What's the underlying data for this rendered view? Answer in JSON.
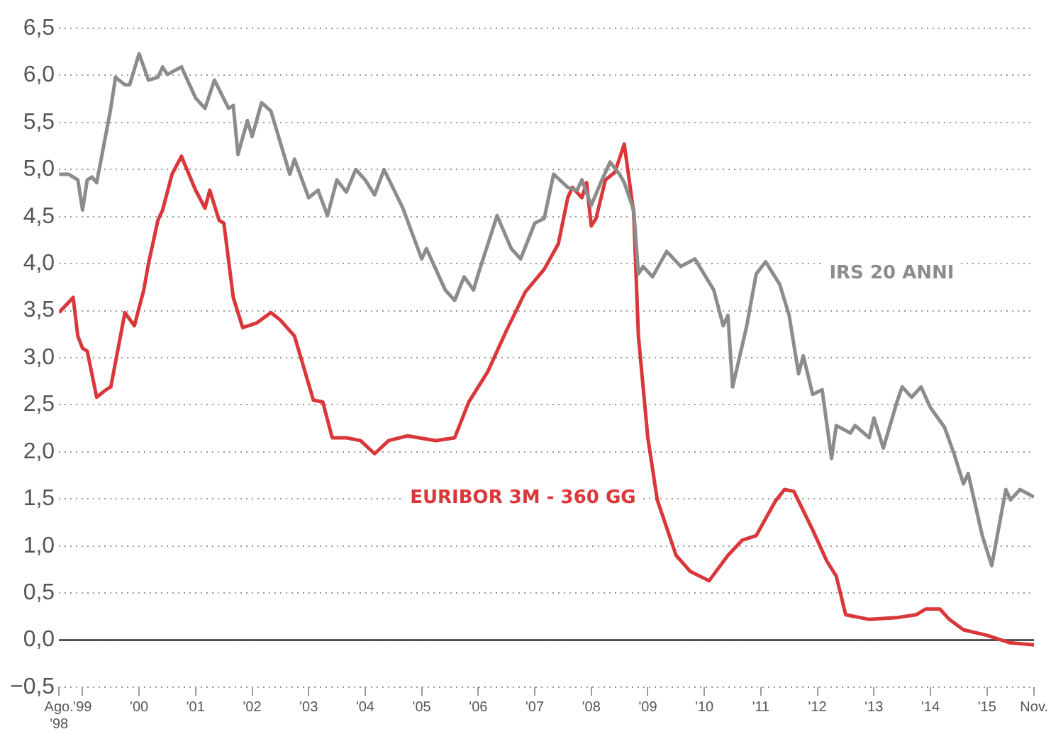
{
  "chart_data": {
    "type": "line",
    "xlim": [
      "1998-08",
      "2015-11"
    ],
    "xticks": [
      {
        "value": "1998-08",
        "label": "Ago. '98"
      },
      {
        "value": "1999-01",
        "label": "'99"
      },
      {
        "value": "2000-01",
        "label": "'00"
      },
      {
        "value": "2001-01",
        "label": "'01"
      },
      {
        "value": "2002-01",
        "label": "'02"
      },
      {
        "value": "2003-01",
        "label": "'03"
      },
      {
        "value": "2004-01",
        "label": "'04"
      },
      {
        "value": "2005-01",
        "label": "'05"
      },
      {
        "value": "2006-01",
        "label": "'06"
      },
      {
        "value": "2007-01",
        "label": "'07"
      },
      {
        "value": "2008-01",
        "label": "'08"
      },
      {
        "value": "2009-01",
        "label": "'09"
      },
      {
        "value": "2010-01",
        "label": "'10"
      },
      {
        "value": "2011-01",
        "label": "'11"
      },
      {
        "value": "2012-01",
        "label": "'12"
      },
      {
        "value": "2013-01",
        "label": "'13"
      },
      {
        "value": "2014-01",
        "label": "'14"
      },
      {
        "value": "2015-01",
        "label": "'15"
      },
      {
        "value": "2015-11",
        "label": "Nov."
      }
    ],
    "ylim": [
      -0.5,
      6.5
    ],
    "yticks": [
      {
        "value": -0.5,
        "label": "−0,5"
      },
      {
        "value": 0,
        "label": "0,0"
      },
      {
        "value": 0.5,
        "label": "0,5"
      },
      {
        "value": 1,
        "label": "1,0"
      },
      {
        "value": 1.5,
        "label": "1,5"
      },
      {
        "value": 2,
        "label": "2,0"
      },
      {
        "value": 2.5,
        "label": "2,5"
      },
      {
        "value": 3,
        "label": "3,0"
      },
      {
        "value": 3.5,
        "label": "3,5"
      },
      {
        "value": 4,
        "label": "4,0"
      },
      {
        "value": 4.5,
        "label": "4,5"
      },
      {
        "value": 5,
        "label": "5,0"
      },
      {
        "value": 5.5,
        "label": "5,5"
      },
      {
        "value": 6,
        "label": "6,0"
      },
      {
        "value": 6.5,
        "label": "6,5"
      }
    ],
    "grid": "y",
    "legend": false,
    "ref_lines": [
      {
        "axis": "y",
        "value": 0,
        "color": "#333333"
      }
    ],
    "series": [
      {
        "name": "IRS 20 ANNI",
        "color": "#8c8c8c",
        "x": [
          "1998-08",
          "1998-10",
          "1998-12",
          "1999-01",
          "1999-02",
          "1999-03",
          "1999-04",
          "1999-07",
          "1999-08",
          "1999-10",
          "1999-11",
          "2000-01",
          "2000-03",
          "2000-05",
          "2000-06",
          "2000-07",
          "2000-10",
          "2001-01",
          "2001-03",
          "2001-05",
          "2001-08",
          "2001-09",
          "2001-10",
          "2001-12",
          "2002-01",
          "2002-03",
          "2002-05",
          "2002-09",
          "2002-10",
          "2003-01",
          "2003-03",
          "2003-05",
          "2003-07",
          "2003-09",
          "2003-11",
          "2004-01",
          "2004-03",
          "2004-05",
          "2004-09",
          "2005-01",
          "2005-02",
          "2005-06",
          "2005-08",
          "2005-10",
          "2005-12",
          "2006-01",
          "2006-05",
          "2006-08",
          "2006-10",
          "2007-01",
          "2007-03",
          "2007-05",
          "2007-08",
          "2007-10",
          "2007-11",
          "2008-01",
          "2008-03",
          "2008-05",
          "2008-07",
          "2008-08",
          "2008-10",
          "2008-11",
          "2008-12",
          "2009-02",
          "2009-05",
          "2009-08",
          "2009-11",
          "2010-03",
          "2010-05",
          "2010-06",
          "2010-07",
          "2010-10",
          "2010-12",
          "2011-02",
          "2011-05",
          "2011-07",
          "2011-09",
          "2011-10",
          "2011-12",
          "2012-02",
          "2012-04",
          "2012-05",
          "2012-08",
          "2012-09",
          "2012-12",
          "2013-01",
          "2013-03",
          "2013-06",
          "2013-07",
          "2013-09",
          "2013-11",
          "2014-01",
          "2014-04",
          "2014-06",
          "2014-08",
          "2014-09",
          "2014-12",
          "2015-02",
          "2015-05",
          "2015-06",
          "2015-08",
          "2015-11"
        ],
        "values": [
          4.95,
          4.95,
          4.89,
          4.57,
          4.89,
          4.92,
          4.86,
          5.65,
          5.98,
          5.9,
          5.9,
          6.23,
          5.95,
          5.98,
          6.09,
          6.01,
          6.09,
          5.76,
          5.65,
          5.95,
          5.65,
          5.68,
          5.16,
          5.52,
          5.35,
          5.71,
          5.62,
          4.95,
          5.11,
          4.7,
          4.78,
          4.51,
          4.89,
          4.76,
          5.0,
          4.89,
          4.73,
          5.0,
          4.59,
          4.05,
          4.16,
          3.72,
          3.61,
          3.86,
          3.72,
          3.89,
          4.51,
          4.16,
          4.05,
          4.43,
          4.48,
          4.95,
          4.81,
          4.78,
          4.89,
          4.62,
          4.86,
          5.08,
          4.95,
          4.86,
          4.57,
          3.89,
          3.97,
          3.86,
          4.13,
          3.97,
          4.05,
          3.72,
          3.34,
          3.45,
          2.69,
          3.34,
          3.89,
          4.02,
          3.78,
          3.45,
          2.83,
          3.02,
          2.61,
          2.66,
          1.93,
          2.28,
          2.2,
          2.28,
          2.15,
          2.36,
          2.04,
          2.55,
          2.69,
          2.58,
          2.69,
          2.47,
          2.26,
          1.98,
          1.66,
          1.77,
          1.11,
          0.79,
          1.6,
          1.49,
          1.6,
          1.52
        ]
      },
      {
        "name": "EURIBOR 3M - 360 GG",
        "color": "#d9373a",
        "x": [
          "1998-08",
          "1998-11",
          "1998-12",
          "1999-01",
          "1999-02",
          "1999-04",
          "1999-06",
          "1999-07",
          "1999-10",
          "1999-12",
          "2000-02",
          "2000-03",
          "2000-05",
          "2000-06",
          "2000-08",
          "2000-10",
          "2001-01",
          "2001-03",
          "2001-04",
          "2001-06",
          "2001-07",
          "2001-09",
          "2001-11",
          "2002-02",
          "2002-05",
          "2002-07",
          "2002-10",
          "2003-02",
          "2003-04",
          "2003-06",
          "2003-09",
          "2003-12",
          "2004-03",
          "2004-06",
          "2004-10",
          "2005-04",
          "2005-08",
          "2005-11",
          "2006-03",
          "2006-07",
          "2006-11",
          "2007-03",
          "2007-06",
          "2007-08",
          "2007-09",
          "2007-11",
          "2007-12",
          "2008-01",
          "2008-02",
          "2008-04",
          "2008-06",
          "2008-08",
          "2008-10",
          "2008-11",
          "2009-01",
          "2009-03",
          "2009-07",
          "2009-10",
          "2010-02",
          "2010-06",
          "2010-09",
          "2010-12",
          "2011-04",
          "2011-06",
          "2011-08",
          "2011-12",
          "2012-03",
          "2012-05",
          "2012-07",
          "2012-12",
          "2013-06",
          "2013-10",
          "2013-12",
          "2014-03",
          "2014-05",
          "2014-08",
          "2015-01",
          "2015-06",
          "2015-11"
        ],
        "values": [
          3.48,
          3.64,
          3.23,
          3.1,
          3.07,
          2.58,
          2.66,
          2.69,
          3.48,
          3.34,
          3.72,
          4.0,
          4.46,
          4.57,
          4.95,
          5.14,
          4.78,
          4.59,
          4.78,
          4.46,
          4.43,
          3.64,
          3.32,
          3.37,
          3.48,
          3.4,
          3.23,
          2.55,
          2.53,
          2.15,
          2.15,
          2.12,
          1.98,
          2.12,
          2.17,
          2.12,
          2.15,
          2.53,
          2.85,
          3.29,
          3.7,
          3.94,
          4.21,
          4.7,
          4.81,
          4.7,
          4.86,
          4.4,
          4.48,
          4.89,
          4.97,
          5.27,
          4.54,
          3.23,
          2.15,
          1.49,
          0.9,
          0.73,
          0.63,
          0.9,
          1.06,
          1.11,
          1.47,
          1.6,
          1.58,
          1.17,
          0.84,
          0.68,
          0.27,
          0.22,
          0.24,
          0.27,
          0.33,
          0.33,
          0.22,
          0.11,
          0.05,
          -0.03,
          -0.05
        ]
      }
    ]
  }
}
